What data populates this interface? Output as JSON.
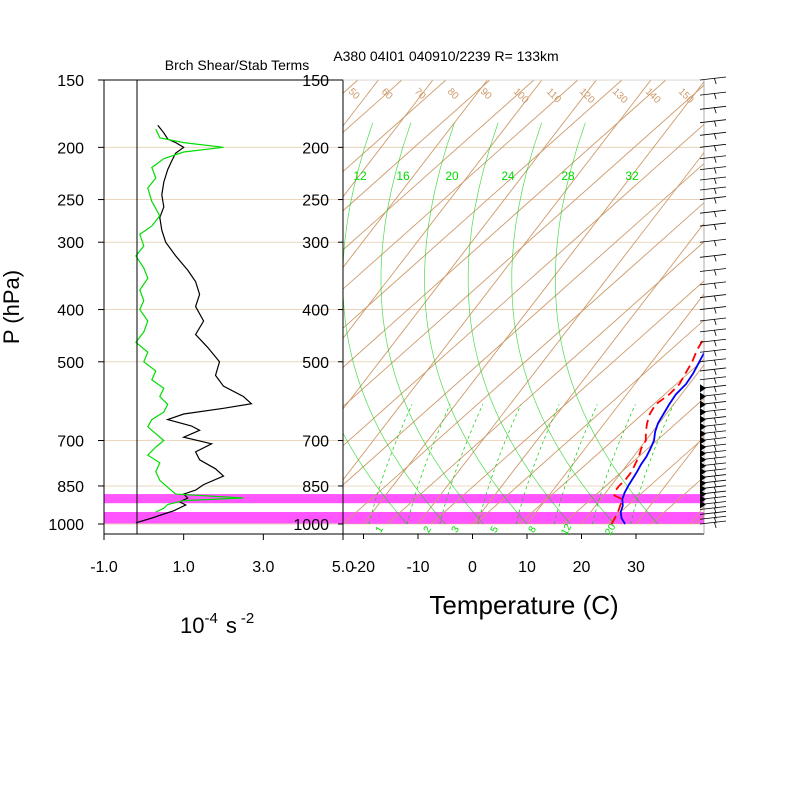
{
  "chart_data": [
    {
      "type": "line",
      "title": "Brch Shear/Stab Terms",
      "ylabel": "P (hPa)",
      "xlabel_base": "10",
      "xlabel_exp": "-4",
      "xlabel_unit": "s",
      "xlabel_unit_exp": "-2",
      "y_scale": "log",
      "ylim": [
        1000,
        150
      ],
      "xlim": [
        -1.0,
        5.0
      ],
      "y_ticks": [
        "150",
        "200",
        "250",
        "300",
        "400",
        "500",
        "700",
        "850",
        "1000"
      ],
      "x_ticks": [
        "-1.0",
        "1.0",
        "3.0",
        "5.0"
      ],
      "series": [
        {
          "color": "#000000",
          "points": [
            [
              0.35,
              182
            ],
            [
              0.5,
              188
            ],
            [
              0.6,
              193
            ],
            [
              0.8,
              196
            ],
            [
              1.0,
              200
            ],
            [
              0.8,
              205
            ],
            [
              0.7,
              212
            ],
            [
              0.6,
              220
            ],
            [
              0.5,
              232
            ],
            [
              0.45,
              245
            ],
            [
              0.5,
              258
            ],
            [
              0.4,
              270
            ],
            [
              0.45,
              285
            ],
            [
              0.55,
              300
            ],
            [
              0.8,
              318
            ],
            [
              1.1,
              338
            ],
            [
              1.3,
              355
            ],
            [
              1.4,
              375
            ],
            [
              1.3,
              395
            ],
            [
              1.5,
              420
            ],
            [
              1.3,
              445
            ],
            [
              1.6,
              470
            ],
            [
              1.9,
              500
            ],
            [
              1.8,
              530
            ],
            [
              2.0,
              555
            ],
            [
              2.5,
              580
            ],
            [
              2.7,
              598
            ],
            [
              2.0,
              610
            ],
            [
              1.0,
              625
            ],
            [
              0.6,
              640
            ],
            [
              1.2,
              658
            ],
            [
              1.4,
              670
            ],
            [
              1.0,
              690
            ],
            [
              1.7,
              710
            ],
            [
              1.3,
              735
            ],
            [
              1.4,
              760
            ],
            [
              1.8,
              790
            ],
            [
              2.0,
              815
            ],
            [
              1.5,
              845
            ],
            [
              1.3,
              865
            ],
            [
              1.0,
              880
            ],
            [
              1.1,
              895
            ],
            [
              0.9,
              910
            ],
            [
              1.05,
              922
            ],
            [
              0.75,
              945
            ],
            [
              0.5,
              958
            ],
            [
              0.2,
              975
            ],
            [
              0.0,
              985
            ],
            [
              -0.2,
              995
            ]
          ]
        },
        {
          "color": "#00dd00",
          "points": [
            [
              0.3,
              185
            ],
            [
              0.4,
              192
            ],
            [
              1.0,
              196
            ],
            [
              2.0,
              200
            ],
            [
              1.0,
              204
            ],
            [
              0.5,
              210
            ],
            [
              0.2,
              218
            ],
            [
              0.3,
              228
            ],
            [
              0.1,
              238
            ],
            [
              0.2,
              252
            ],
            [
              0.4,
              268
            ],
            [
              0.2,
              280
            ],
            [
              -0.1,
              290
            ],
            [
              0.0,
              305
            ],
            [
              -0.2,
              318
            ],
            [
              0.0,
              335
            ],
            [
              0.1,
              350
            ],
            [
              -0.1,
              368
            ],
            [
              0.0,
              385
            ],
            [
              -0.1,
              400
            ],
            [
              0.1,
              420
            ],
            [
              0.0,
              440
            ],
            [
              -0.2,
              460
            ],
            [
              0.1,
              480
            ],
            [
              0.0,
              500
            ],
            [
              0.3,
              520
            ],
            [
              0.2,
              540
            ],
            [
              0.5,
              560
            ],
            [
              0.4,
              580
            ],
            [
              0.6,
              600
            ],
            [
              0.5,
              620
            ],
            [
              0.2,
              640
            ],
            [
              0.1,
              660
            ],
            [
              0.3,
              680
            ],
            [
              0.5,
              700
            ],
            [
              0.3,
              720
            ],
            [
              0.1,
              745
            ],
            [
              0.4,
              770
            ],
            [
              0.3,
              800
            ],
            [
              0.4,
              830
            ],
            [
              0.6,
              855
            ],
            [
              0.8,
              880
            ],
            [
              2.5,
              895
            ],
            [
              1.0,
              905
            ],
            [
              0.6,
              920
            ],
            [
              0.5,
              935
            ],
            [
              0.3,
              950
            ]
          ]
        }
      ],
      "highlight_bands": [
        [
          880,
          915
        ],
        [
          950,
          1000
        ]
      ],
      "highlight_color": "#ff55ff"
    },
    {
      "type": "skewt",
      "title": "A380 04I01 040910/2239 R= 133km",
      "xlabel": "Temperature (C)",
      "y_scale": "log",
      "ylim": [
        1000,
        150
      ],
      "xlim": [
        -25,
        40
      ],
      "y_ticks": [
        "150",
        "200",
        "250",
        "300",
        "400",
        "500",
        "700",
        "850",
        "1000"
      ],
      "x_ticks": [
        "-20",
        "-10",
        "0",
        "10",
        "20",
        "30"
      ],
      "x_tick_values": [
        -20,
        -10,
        0,
        10,
        20,
        30
      ],
      "theta_labels": [
        "50",
        "60",
        "70",
        "80",
        "90",
        "100",
        "110",
        "120",
        "130",
        "140",
        "150"
      ],
      "mixing_ratio_labels_top": [
        "12",
        "16",
        "20",
        "24",
        "28",
        "32"
      ],
      "mixing_ratio_labels_bottom": [
        "1",
        "2",
        "3",
        "5",
        "8",
        "12",
        "20"
      ],
      "series": [
        {
          "name": "temperature",
          "color": "#0000ff",
          "style": "solid",
          "points": [
            [
              1000,
              28
            ],
            [
              975,
              26.5
            ],
            [
              950,
              25.5
            ],
            [
              925,
              25
            ],
            [
              900,
              24
            ],
            [
              875,
              23.5
            ],
            [
              850,
              23.2
            ],
            [
              825,
              23
            ],
            [
              800,
              22.8
            ],
            [
              775,
              22.5
            ],
            [
              750,
              22.4
            ],
            [
              725,
              22
            ],
            [
              700,
              21.5
            ],
            [
              675,
              20.5
            ],
            [
              650,
              19.8
            ],
            [
              625,
              19.5
            ],
            [
              600,
              19.2
            ],
            [
              575,
              19
            ],
            [
              550,
              19.4
            ],
            [
              525,
              19.2
            ],
            [
              500,
              18.7
            ],
            [
              475,
              18.2
            ],
            [
              450,
              17.8
            ],
            [
              425,
              17.3
            ],
            [
              400,
              16.8
            ],
            [
              375,
              15.8
            ],
            [
              350,
              14.9
            ],
            [
              325,
              13.4
            ],
            [
              300,
              11.8
            ],
            [
              275,
              9.8
            ],
            [
              250,
              7.3
            ],
            [
              225,
              4.8
            ],
            [
              200,
              1.2
            ],
            [
              190,
              0.2
            ],
            [
              180,
              -1.3
            ],
            [
              175,
              -2.6
            ],
            [
              170,
              -3.6
            ]
          ]
        },
        {
          "name": "dewpoint",
          "color": "#ff0000",
          "style": "dashed",
          "points": [
            [
              1000,
              25.5
            ],
            [
              975,
              25.3
            ],
            [
              950,
              25
            ],
            [
              925,
              24.5
            ],
            [
              900,
              24
            ],
            [
              885,
              22
            ],
            [
              870,
              21.5
            ],
            [
              850,
              21.5
            ],
            [
              825,
              21.8
            ],
            [
              800,
              21.8
            ],
            [
              775,
              21.4
            ],
            [
              750,
              21
            ],
            [
              725,
              20.3
            ],
            [
              700,
              20
            ],
            [
              675,
              18.8
            ],
            [
              650,
              17.8
            ],
            [
              625,
              17
            ],
            [
              600,
              16.7
            ],
            [
              575,
              17.8
            ],
            [
              550,
              18.2
            ],
            [
              525,
              17.8
            ],
            [
              500,
              17.4
            ],
            [
              475,
              16.6
            ],
            [
              450,
              16.2
            ],
            [
              425,
              15.7
            ],
            [
              400,
              15.1
            ],
            [
              375,
              14.4
            ],
            [
              350,
              13.7
            ],
            [
              325,
              12.2
            ],
            [
              300,
              10.2
            ],
            [
              275,
              6.2
            ],
            [
              250,
              3.6
            ],
            [
              225,
              0.5
            ],
            [
              210,
              -1.8
            ],
            [
              200,
              -2.3
            ]
          ]
        }
      ],
      "wind_barb_levels": [
        150,
        160,
        170,
        180,
        190,
        200,
        210,
        220,
        230,
        240,
        250,
        265,
        280,
        300,
        320,
        340,
        360,
        380,
        400,
        420,
        440,
        460,
        480,
        500,
        520,
        540,
        560,
        580,
        600,
        620,
        640,
        660,
        680,
        700,
        720,
        740,
        760,
        780,
        800,
        820,
        840,
        860,
        880,
        900,
        920,
        940,
        960,
        980,
        1000
      ],
      "highlight_bands": [
        [
          880,
          915
        ],
        [
          950,
          1000
        ]
      ],
      "highlight_color": "#ff55ff",
      "colors": {
        "isotherm_theta": "#cd9a6a",
        "mixing_ratio": "#00cc00",
        "gridline": "#dab48c"
      }
    }
  ]
}
